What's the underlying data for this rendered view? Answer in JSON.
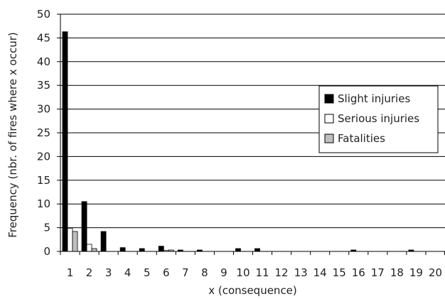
{
  "chart_data": {
    "type": "bar",
    "title": "",
    "xlabel": "x (consequence)",
    "ylabel": "Frequency (nbr. of fires where x occur)",
    "categories": [
      "1",
      "2",
      "3",
      "4",
      "5",
      "6",
      "7",
      "8",
      "9",
      "10",
      "11",
      "12",
      "13",
      "14",
      "15",
      "16",
      "17",
      "18",
      "19",
      "20"
    ],
    "ylim": [
      0,
      50
    ],
    "yticks": [
      0,
      5,
      10,
      15,
      20,
      25,
      30,
      35,
      40,
      45,
      50
    ],
    "grid": "horizontal",
    "legend_position": "right",
    "series": [
      {
        "name": "Slight injuries",
        "color": "#000000",
        "values": [
          46.3,
          10.5,
          4.2,
          0.8,
          0.6,
          1.1,
          0.3,
          0.3,
          0,
          0.6,
          0.6,
          0,
          0,
          0,
          0,
          0.3,
          0,
          0,
          0.3,
          0
        ]
      },
      {
        "name": "Serious injuries",
        "color": "#ffffff",
        "values": [
          4.9,
          1.5,
          0,
          0,
          0,
          0.2,
          0,
          0,
          0,
          0,
          0,
          0,
          0,
          0,
          0,
          0,
          0,
          0,
          0,
          0
        ]
      },
      {
        "name": "Fatalities",
        "color": "#bfbfbf",
        "values": [
          4.2,
          0.6,
          0,
          0,
          0,
          0.3,
          0,
          0,
          0,
          0,
          0,
          0,
          0,
          0,
          0,
          0,
          0,
          0,
          0,
          0
        ]
      }
    ]
  }
}
